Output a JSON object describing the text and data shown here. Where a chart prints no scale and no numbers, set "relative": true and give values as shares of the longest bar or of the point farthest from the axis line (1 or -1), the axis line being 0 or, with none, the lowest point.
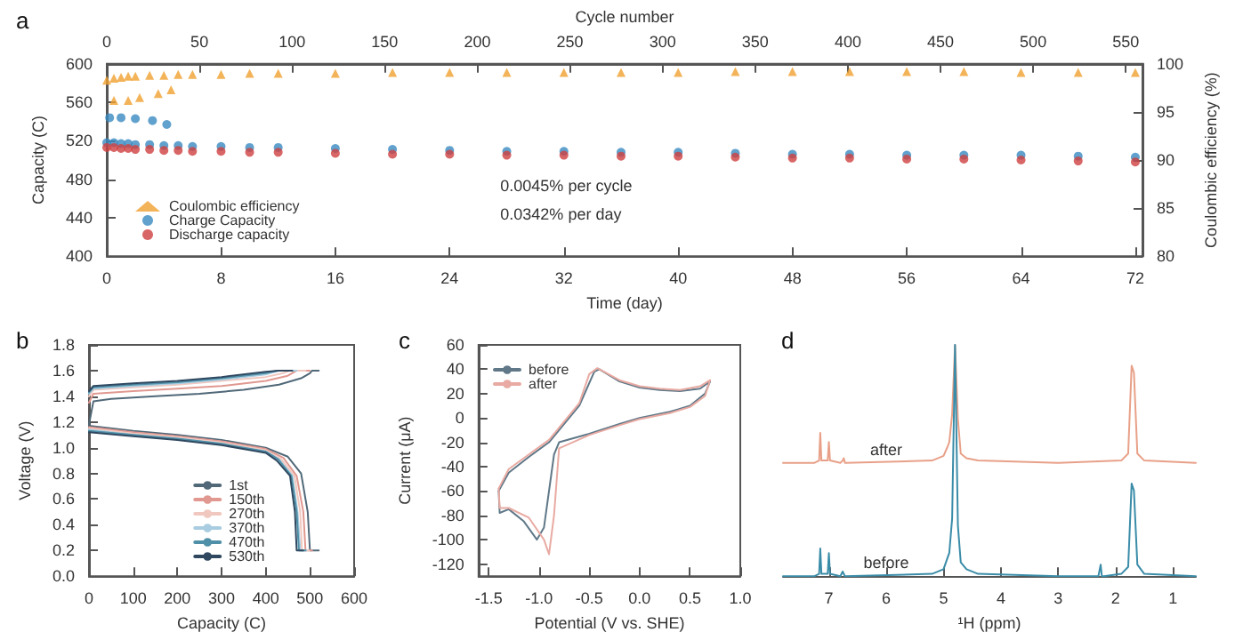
{
  "chart_data": [
    {
      "type": "scatter",
      "title": "a",
      "xlabel": "Time (day)",
      "x2label": "Cycle number",
      "ylabel": "Capacity (C)",
      "y2label": "Coulombic efficiency (%)",
      "legend": "bottom left",
      "annotations": [
        "0.0045% per cycle",
        "0.0342% per day"
      ],
      "xlim": [
        0,
        72.5
      ],
      "xticks": [
        0,
        8,
        16,
        24,
        32,
        40,
        48,
        56,
        64,
        72
      ],
      "x2lim": [
        0,
        559
      ],
      "x2ticks": [
        0,
        50,
        100,
        150,
        200,
        250,
        300,
        350,
        400,
        450,
        500,
        550
      ],
      "ylim": [
        400,
        600
      ],
      "yticks": [
        400,
        440,
        480,
        520,
        560,
        600
      ],
      "y2lim": [
        80,
        100
      ],
      "y2ticks": [
        80,
        85,
        90,
        95,
        100
      ],
      "series": [
        {
          "name": "Coulombic efficiency",
          "color": "#f0a030",
          "marker": "triangle",
          "axis": "y2",
          "x": [
            0,
            0.5,
            1,
            1.5,
            2,
            3,
            4,
            5,
            6,
            8,
            10,
            12,
            16,
            20,
            24,
            28,
            32,
            36,
            40,
            44,
            48,
            52,
            56,
            60,
            64,
            68,
            72,
            0.5,
            1.5,
            2.3,
            3.6,
            4.5
          ],
          "values": [
            98.3,
            98.5,
            98.6,
            98.7,
            98.7,
            98.8,
            98.8,
            98.9,
            98.9,
            98.9,
            99.0,
            99.0,
            99.0,
            99.1,
            99.1,
            99.1,
            99.1,
            99.1,
            99.1,
            99.2,
            99.2,
            99.2,
            99.2,
            99.2,
            99.1,
            99.1,
            99.1,
            96.2,
            96.2,
            96.5,
            96.9,
            97.3
          ]
        },
        {
          "name": "Charge Capacity",
          "color": "#3a8ac0",
          "marker": "circle",
          "x": [
            0,
            0.5,
            1,
            1.5,
            2,
            3,
            4,
            5,
            6,
            8,
            10,
            12,
            16,
            20,
            24,
            28,
            32,
            36,
            40,
            44,
            48,
            52,
            56,
            60,
            64,
            68,
            72,
            0.2,
            1,
            2,
            3.2,
            4.2
          ],
          "values": [
            518,
            518,
            517,
            517,
            516,
            516,
            515,
            515,
            514,
            514,
            513,
            513,
            512,
            511,
            510,
            509,
            509,
            508,
            508,
            507,
            506,
            506,
            505,
            505,
            505,
            504,
            503,
            544,
            544,
            543,
            541,
            537
          ]
        },
        {
          "name": "Discharge capacity",
          "color": "#d04040",
          "marker": "circle",
          "x": [
            0,
            0.5,
            1,
            1.5,
            2,
            3,
            4,
            5,
            6,
            8,
            10,
            12,
            16,
            20,
            24,
            28,
            32,
            36,
            40,
            44,
            48,
            52,
            56,
            60,
            64,
            68,
            72
          ],
          "values": [
            513,
            513,
            512,
            512,
            511,
            511,
            510,
            510,
            509,
            509,
            508,
            508,
            507,
            506,
            506,
            505,
            505,
            504,
            504,
            503,
            502,
            502,
            501,
            501,
            500,
            499,
            498
          ]
        }
      ]
    },
    {
      "type": "line",
      "title": "b",
      "xlabel": "Capacity (C)",
      "ylabel": "Voltage (V)",
      "legend": "bottom",
      "marker": "none",
      "xlim": [
        0,
        600
      ],
      "xticks": [
        0,
        100,
        200,
        300,
        400,
        500,
        600
      ],
      "ylim": [
        0,
        1.8
      ],
      "yticks": [
        {
          "value": 0,
          "label": "0.0"
        },
        0.2,
        0.4,
        0.6,
        0.8,
        {
          "value": 1,
          "label": "1.0"
        },
        1.2,
        1.4,
        1.6,
        1.8
      ],
      "series": [
        {
          "name": "1st",
          "color": "#506878",
          "x": [
            0,
            10,
            50,
            150,
            250,
            350,
            430,
            480,
            500,
            505,
            520,
            null,
            0,
            100,
            200,
            300,
            400,
            450,
            480,
            495,
            500,
            520
          ],
          "values": [
            1.18,
            1.36,
            1.38,
            1.4,
            1.42,
            1.45,
            1.49,
            1.54,
            1.58,
            1.6,
            1.6,
            null,
            1.17,
            1.13,
            1.1,
            1.06,
            1.0,
            0.93,
            0.8,
            0.5,
            0.2,
            0.2
          ]
        },
        {
          "name": "150th",
          "color": "#e09890",
          "x": [
            0,
            10,
            100,
            200,
            300,
            400,
            450,
            470,
            500,
            null,
            0,
            100,
            200,
            300,
            400,
            440,
            470,
            485,
            490,
            505
          ],
          "values": [
            1.35,
            1.42,
            1.44,
            1.46,
            1.48,
            1.52,
            1.56,
            1.6,
            1.6,
            null,
            1.16,
            1.12,
            1.09,
            1.05,
            0.99,
            0.92,
            0.78,
            0.5,
            0.2,
            0.2
          ]
        },
        {
          "name": "270th",
          "color": "#f0c8c0",
          "x": [
            0,
            10,
            100,
            200,
            300,
            400,
            440,
            455,
            490,
            null,
            0,
            100,
            200,
            300,
            400,
            435,
            465,
            478,
            482,
            498
          ],
          "values": [
            1.4,
            1.45,
            1.47,
            1.49,
            1.52,
            1.55,
            1.58,
            1.6,
            1.6,
            null,
            1.15,
            1.11,
            1.08,
            1.04,
            0.98,
            0.91,
            0.78,
            0.5,
            0.2,
            0.2
          ]
        },
        {
          "name": "370th",
          "color": "#a8cce0",
          "x": [
            0,
            10,
            100,
            200,
            300,
            400,
            430,
            470,
            null,
            0,
            100,
            200,
            300,
            400,
            430,
            460,
            472,
            478,
            492
          ],
          "values": [
            1.42,
            1.46,
            1.48,
            1.5,
            1.53,
            1.57,
            1.6,
            1.6,
            null,
            1.14,
            1.1,
            1.07,
            1.03,
            0.97,
            0.91,
            0.78,
            0.5,
            0.2,
            0.2
          ]
        },
        {
          "name": "470th",
          "color": "#4f90a8",
          "x": [
            0,
            10,
            100,
            200,
            300,
            400,
            425,
            460,
            null,
            0,
            100,
            200,
            300,
            400,
            428,
            458,
            470,
            475,
            490
          ],
          "values": [
            1.43,
            1.47,
            1.49,
            1.51,
            1.54,
            1.58,
            1.6,
            1.6,
            null,
            1.13,
            1.1,
            1.07,
            1.03,
            0.97,
            0.91,
            0.78,
            0.5,
            0.2,
            0.2
          ]
        },
        {
          "name": "530th",
          "color": "#2f4860",
          "x": [
            0,
            10,
            100,
            200,
            300,
            400,
            430,
            460,
            null,
            0,
            100,
            200,
            300,
            400,
            425,
            455,
            466,
            470,
            485
          ],
          "values": [
            1.44,
            1.48,
            1.5,
            1.52,
            1.55,
            1.59,
            1.6,
            1.6,
            null,
            1.12,
            1.09,
            1.06,
            1.02,
            0.96,
            0.9,
            0.78,
            0.5,
            0.2,
            0.2
          ]
        }
      ]
    },
    {
      "type": "line",
      "title": "c",
      "xlabel": "Potential (V vs. SHE)",
      "ylabel": "Current (μA)",
      "legend": "top left",
      "marker": "none",
      "xlim": [
        -1.6,
        1.0
      ],
      "xticks": [
        -1.5,
        {
          "value": -1,
          "label": "-1.0"
        },
        -0.5,
        {
          "value": 0,
          "label": "0.0"
        },
        0.5,
        {
          "value": 1,
          "label": "1.0"
        }
      ],
      "ylim": [
        -130,
        60
      ],
      "yticks": [
        -120,
        -100,
        -80,
        -60,
        -40,
        -20,
        0,
        20,
        40,
        60
      ],
      "series": [
        {
          "name": "before",
          "color": "#607888",
          "x": [
            0.7,
            0.6,
            0.4,
            0.2,
            0,
            -0.2,
            -0.4,
            -0.45,
            -0.6,
            -0.7,
            -0.8,
            -0.9,
            -1.1,
            -1.3,
            -1.4
          ],
          "values": [
            30,
            24,
            22,
            23,
            25,
            30,
            40,
            38,
            10,
            0,
            -10,
            -20,
            -32,
            -45,
            -60
          ]
        },
        {
          "color": "#607888",
          "x": [
            -1.4,
            -1.39,
            -1.3,
            -1.15,
            -1.02,
            -0.95,
            -0.85,
            -0.8,
            -0.5,
            -0.2,
            0,
            0.3,
            0.5,
            0.65,
            0.7
          ],
          "values": [
            -60,
            -78,
            -75,
            -85,
            -100,
            -90,
            -30,
            -20,
            -13,
            -5,
            0,
            5,
            10,
            20,
            30
          ]
        },
        {
          "name": "after",
          "color": "#e8aaa2",
          "x": [
            0.7,
            0.6,
            0.4,
            0.2,
            0,
            -0.2,
            -0.42,
            -0.5,
            -0.6,
            -0.7,
            -0.8,
            -0.9,
            -1.1,
            -1.3,
            -1.4
          ],
          "values": [
            31,
            26,
            23,
            24,
            26,
            31,
            41,
            36,
            12,
            2,
            -8,
            -18,
            -30,
            -42,
            -58
          ]
        },
        {
          "color": "#e8aaa2",
          "x": [
            -1.4,
            -1.39,
            -1.3,
            -1.1,
            -0.95,
            -0.9,
            -0.85,
            -0.8,
            -0.5,
            -0.2,
            0,
            0.3,
            0.5,
            0.65,
            0.7
          ],
          "values": [
            -58,
            -74,
            -74,
            -82,
            -100,
            -112,
            -80,
            -25,
            -14,
            -6,
            -1,
            4,
            9,
            18,
            31
          ]
        }
      ]
    },
    {
      "type": "line",
      "title": "d",
      "xlabel": "¹H (ppm)",
      "relative": true,
      "marker": "none",
      "xlim": [
        7.8,
        0.6
      ],
      "xticks": [
        7,
        6,
        5,
        4,
        3,
        2,
        1
      ],
      "series": [
        {
          "name": "after",
          "color": "#e8a088",
          "x": [
            7.8,
            7.25,
            7.17,
            7.15,
            7.13,
            7.05,
            7.02,
            7.0,
            6.98,
            6.8,
            6.76,
            6.74,
            6.72,
            5.2,
            5.0,
            4.93,
            4.9,
            4.85,
            4.8,
            4.75,
            4.7,
            4.6,
            4.4,
            3.0,
            1.9,
            1.78,
            1.72,
            1.68,
            1.62,
            1.5,
            0.6
          ],
          "values": [
            0.49,
            0.49,
            0.5,
            0.62,
            0.5,
            0.5,
            0.5,
            0.58,
            0.5,
            0.49,
            0.5,
            0.51,
            0.49,
            0.5,
            0.52,
            0.56,
            0.58,
            0.7,
            1,
            0.68,
            0.53,
            0.51,
            0.5,
            0.49,
            0.5,
            0.53,
            0.91,
            0.88,
            0.53,
            0.5,
            0.49
          ]
        },
        {
          "name": "before",
          "color": "#3a8ca8",
          "x": [
            7.8,
            7.25,
            7.17,
            7.15,
            7.13,
            7.05,
            7.02,
            7.0,
            6.98,
            6.8,
            6.76,
            6.74,
            6.72,
            5.2,
            5.0,
            4.93,
            4.9,
            4.85,
            4.8,
            4.75,
            4.7,
            4.6,
            4.4,
            3.0,
            2.3,
            2.26,
            2.24,
            2.2,
            1.9,
            1.78,
            1.72,
            1.68,
            1.62,
            1.5,
            0.6
          ],
          "values": [
            0,
            0,
            0.01,
            0.12,
            0.01,
            0.01,
            0.01,
            0.1,
            0.01,
            0,
            0.02,
            0.02,
            0,
            0.01,
            0.03,
            0.08,
            0.1,
            0.25,
            1,
            0.22,
            0.06,
            0.03,
            0.01,
            0,
            0,
            0.05,
            0,
            0,
            0.01,
            0.04,
            0.4,
            0.37,
            0.05,
            0.01,
            0
          ]
        }
      ]
    }
  ]
}
